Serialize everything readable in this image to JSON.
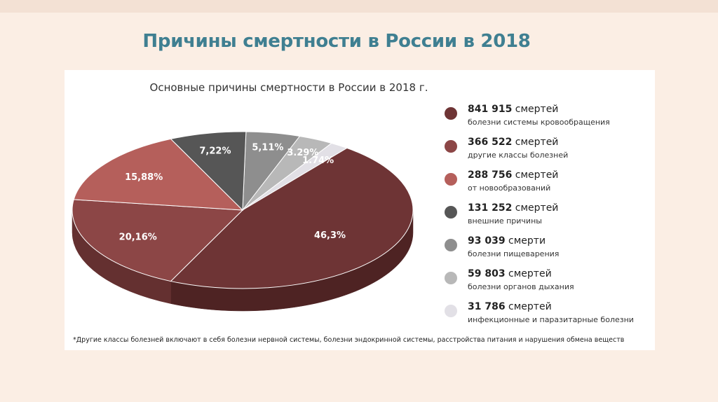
{
  "slide": {
    "title": "Причины смертности в России в 2018"
  },
  "chart_data": {
    "type": "pie",
    "title": "Основные причины смертности в России в 2018 г.",
    "slices": [
      {
        "label": "болезни системы кровообращения",
        "count_value": "841 915",
        "count_unit": "смертей",
        "percent": 46.3,
        "percent_label": "46,3%",
        "color": "#6e3435",
        "side_color": "#4e2323"
      },
      {
        "label": "другие классы болезней",
        "count_value": "366 522",
        "count_unit": "смертей",
        "percent": 20.16,
        "percent_label": "20,16%",
        "color": "#8c4646",
        "side_color": "#643030"
      },
      {
        "label": "от новообразований",
        "count_value": "288 756",
        "count_unit": "смертей",
        "percent": 15.88,
        "percent_label": "15,88%",
        "color": "#b55f5b",
        "side_color": "#8a4440"
      },
      {
        "label": "внешние причины",
        "count_value": "131 252",
        "count_unit": "смертей",
        "percent": 7.22,
        "percent_label": "7,22%",
        "color": "#565656",
        "side_color": "#3b3b3b"
      },
      {
        "label": "болезни пищеварения",
        "count_value": "93 039",
        "count_unit": "смерти",
        "percent": 5.11,
        "percent_label": "5,11%",
        "color": "#8e8e8e",
        "side_color": "#6c6c6c"
      },
      {
        "label": "болезни органов дыхания",
        "count_value": "59 803",
        "count_unit": "смертей",
        "percent": 3.29,
        "percent_label": "3.29%",
        "color": "#b8b8b8",
        "side_color": "#999999"
      },
      {
        "label": "инфекционные и паразитарные болезни",
        "count_value": "31 786",
        "count_unit": "смертей",
        "percent": 1.74,
        "percent_label": "1.74%",
        "color": "#e2e0e6",
        "side_color": "#c8c6cc"
      }
    ],
    "pie_order": [
      4,
      5,
      6,
      0,
      1,
      2,
      3
    ],
    "footnote": "*Другие классы болезней включают в себя болезни нервной системы, болезни эндокринной системы, расстройства питания и нарушения обмена веществ"
  }
}
